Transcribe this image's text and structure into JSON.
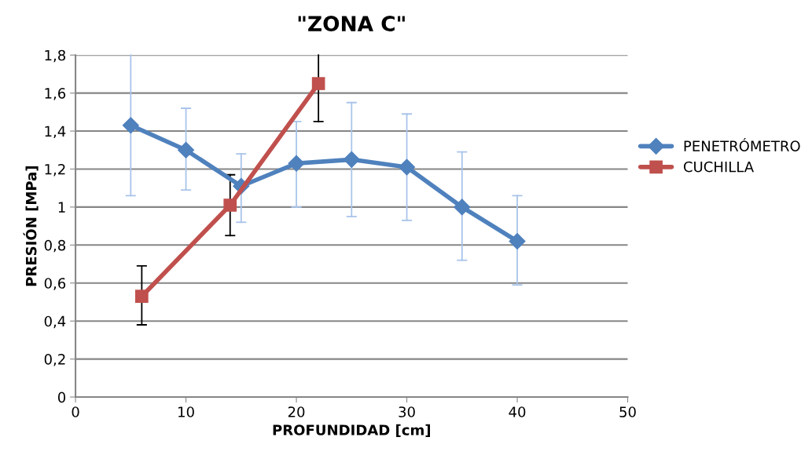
{
  "chart_data": {
    "type": "line",
    "title": "\"ZONA C\"",
    "xlabel": "PROFUNDIDAD [cm]",
    "ylabel": "PRESIÓN [MPa]",
    "xlim": [
      0,
      50
    ],
    "xticks": [
      0,
      10,
      20,
      30,
      40,
      50
    ],
    "ylim": [
      0,
      1.8
    ],
    "yticks": [
      0,
      {
        "value": 0.2,
        "label": "0,2"
      },
      {
        "value": 0.4,
        "label": "0,4"
      },
      {
        "value": 0.6,
        "label": "0,6"
      },
      {
        "value": 0.8,
        "label": "0,8"
      },
      1,
      {
        "value": 1.2,
        "label": "1,2"
      },
      {
        "value": 1.4,
        "label": "1,4"
      },
      {
        "value": 1.6,
        "label": "1,6"
      },
      {
        "value": 1.8,
        "label": "1,8"
      }
    ],
    "grid": "y",
    "legend": "right",
    "series": [
      {
        "name": "PENETRÓMETRO",
        "color": "#4f81bd",
        "marker": "diamond",
        "x": [
          5,
          10,
          15,
          20,
          25,
          30,
          35,
          40
        ],
        "values": [
          1.43,
          1.3,
          1.11,
          1.23,
          1.25,
          1.21,
          1.0,
          0.82
        ],
        "errors": [
          [
            1.06,
            1.8
          ],
          [
            1.09,
            1.52
          ],
          [
            0.92,
            1.28
          ],
          [
            1.0,
            1.45
          ],
          [
            0.95,
            1.55
          ],
          [
            0.93,
            1.49
          ],
          [
            0.72,
            1.29
          ],
          [
            0.59,
            1.06
          ]
        ]
      },
      {
        "name": "CUCHILLA",
        "color": "#c0504d",
        "marker": "square",
        "x": [
          6,
          14,
          22
        ],
        "values": [
          0.53,
          1.01,
          1.65
        ],
        "errors": [
          [
            0.38,
            0.69
          ],
          [
            0.85,
            1.17
          ],
          [
            1.45,
            1.8
          ]
        ]
      }
    ]
  }
}
